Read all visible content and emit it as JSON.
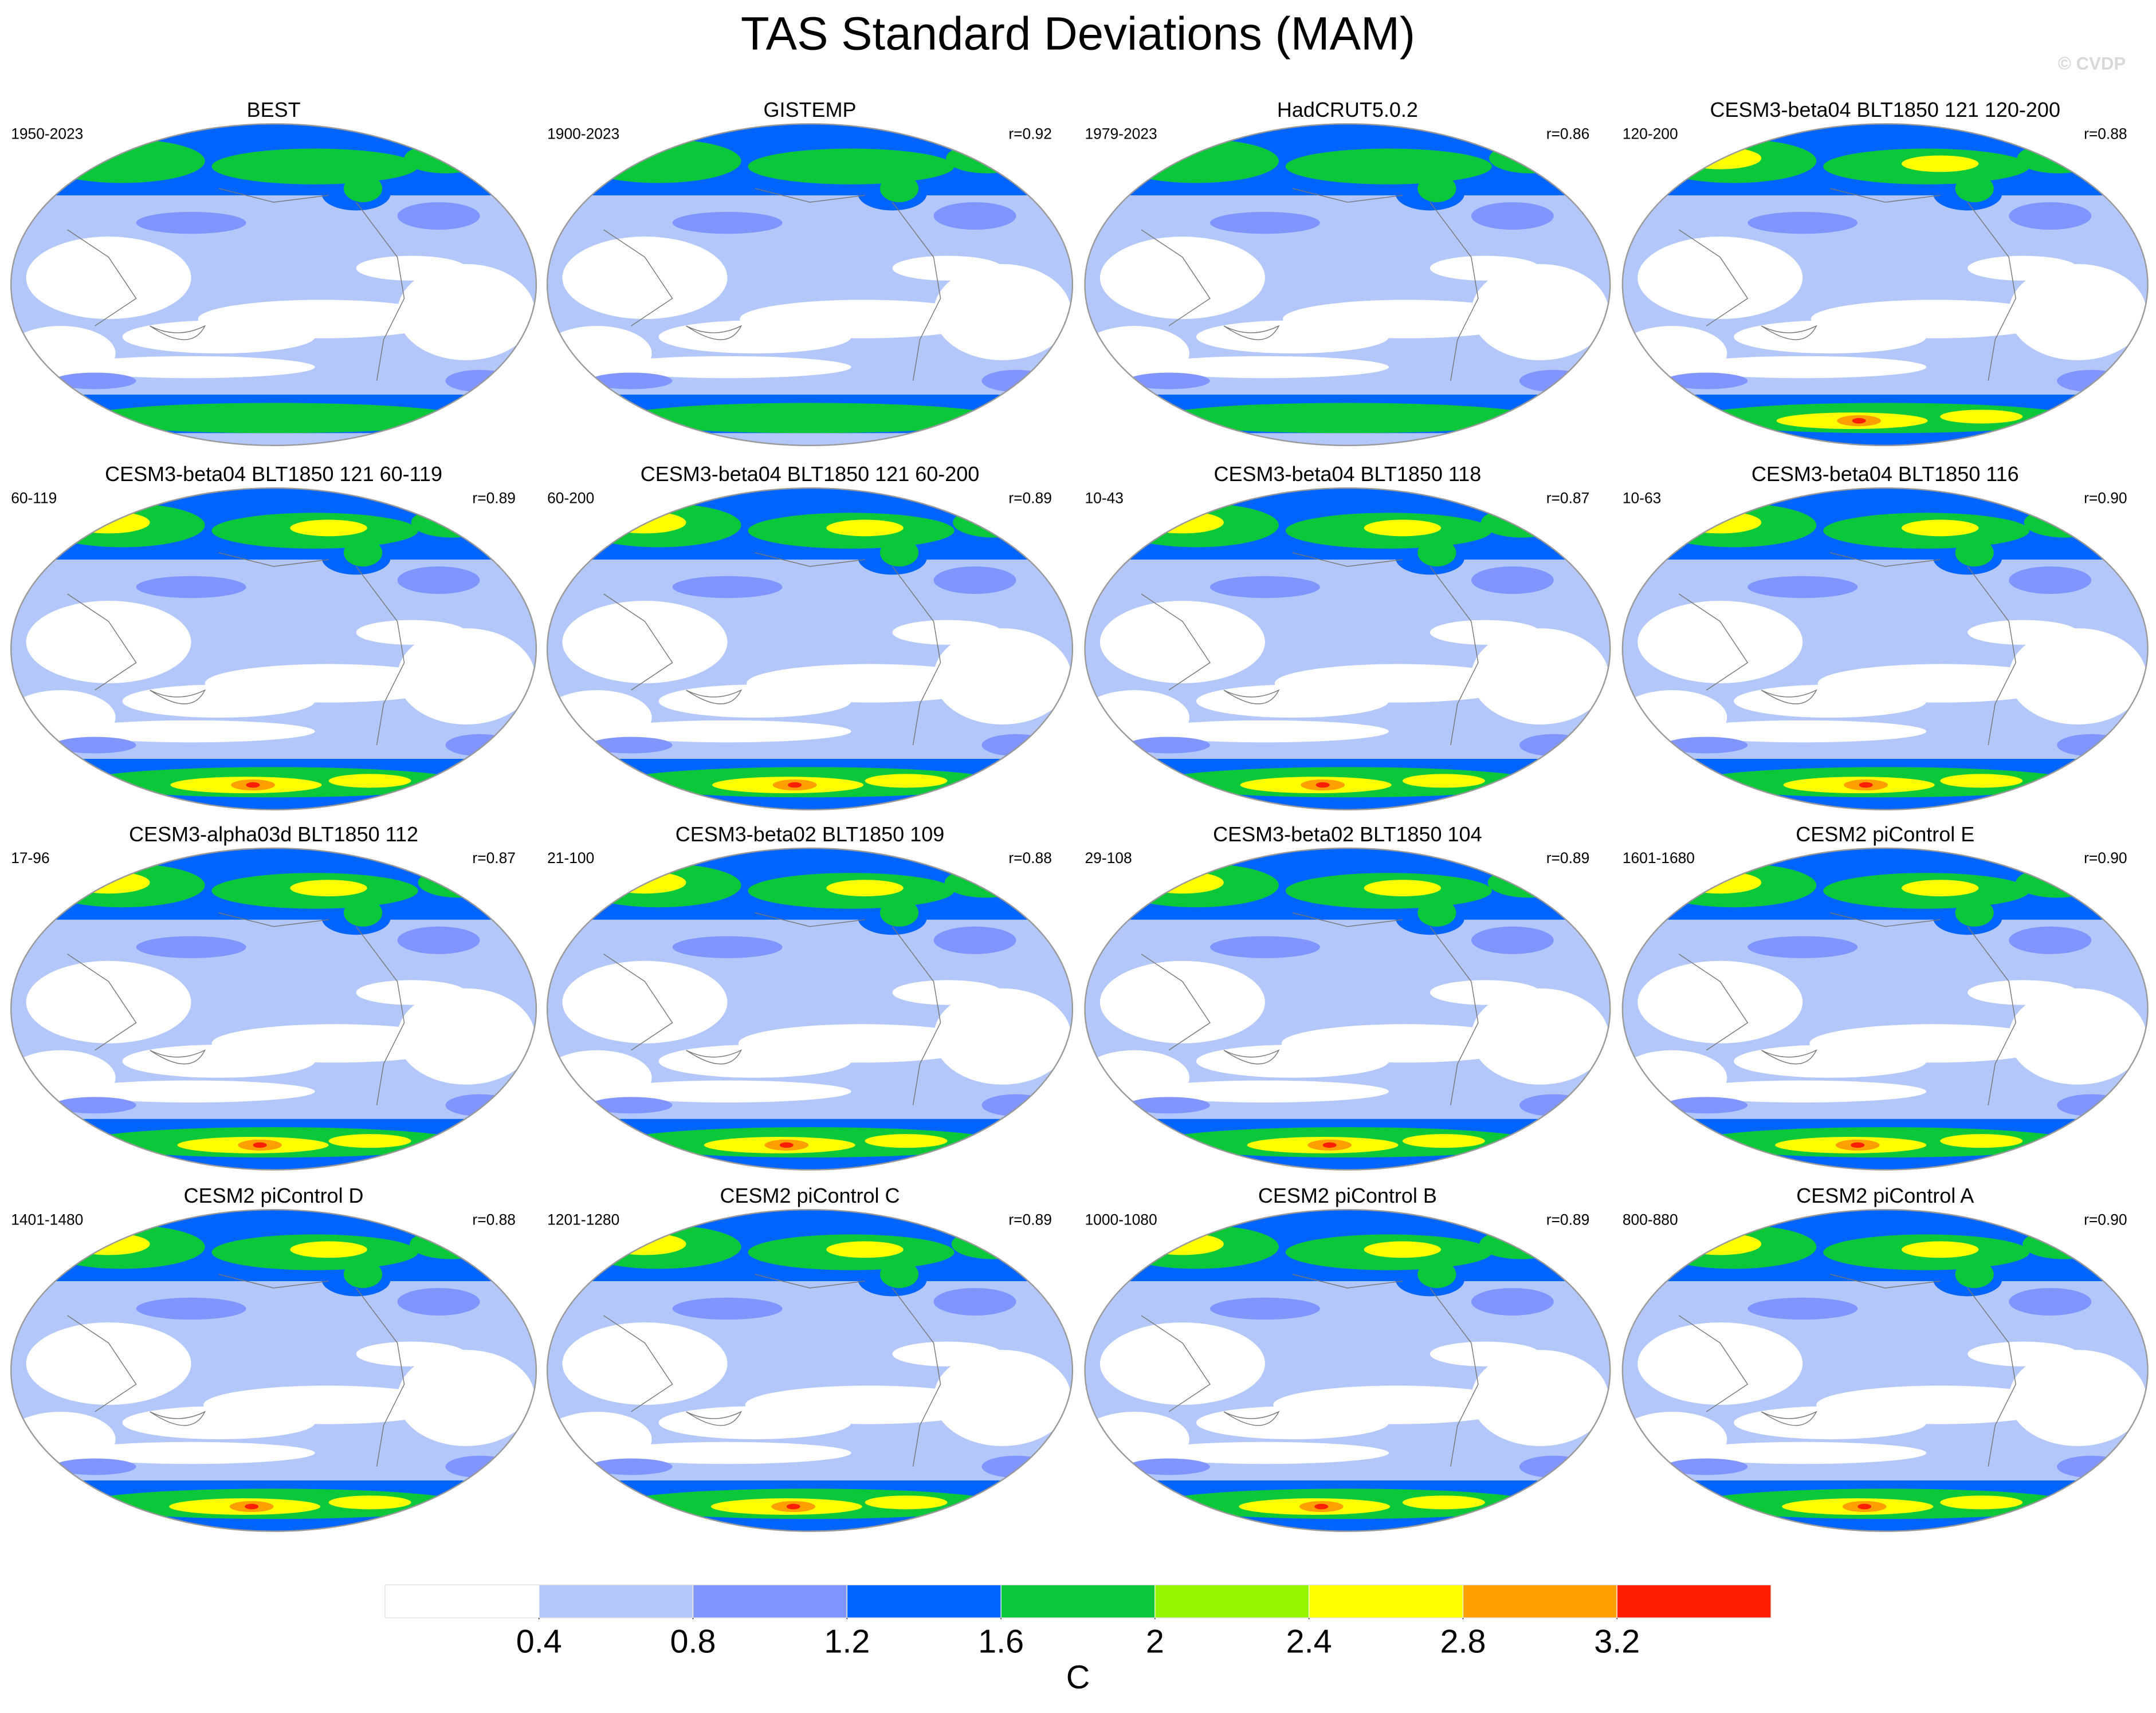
{
  "title": "TAS Standard Deviations (MAM)",
  "watermark": "© CVDP",
  "panels": [
    {
      "title": "BEST",
      "left": "1950-2023"
    },
    {
      "title": "GISTEMP",
      "left": "1900-2023",
      "right": "r=0.92"
    },
    {
      "title": "HadCRUT5.0.2",
      "left": "1979-2023",
      "right": "r=0.86"
    },
    {
      "title": "CESM3-beta04 BLT1850 121 120-200",
      "left": "120-200",
      "right": "r=0.88"
    },
    {
      "title": "CESM3-beta04 BLT1850 121 60-119",
      "left": "60-119",
      "right": "r=0.89"
    },
    {
      "title": "CESM3-beta04 BLT1850 121 60-200",
      "left": "60-200",
      "right": "r=0.89"
    },
    {
      "title": "CESM3-beta04 BLT1850 118",
      "left": "10-43",
      "right": "r=0.87"
    },
    {
      "title": "CESM3-beta04 BLT1850 116",
      "left": "10-63",
      "right": "r=0.90"
    },
    {
      "title": "CESM3-alpha03d BLT1850 112",
      "left": "17-96",
      "right": "r=0.87"
    },
    {
      "title": "CESM3-beta02 BLT1850 109",
      "left": "21-100",
      "right": "r=0.88"
    },
    {
      "title": "CESM3-beta02 BLT1850 104",
      "left": "29-108",
      "right": "r=0.89"
    },
    {
      "title": "CESM2 piControl E",
      "left": "1601-1680",
      "right": "r=0.90"
    },
    {
      "title": "CESM2 piControl D",
      "left": "1401-1480",
      "right": "r=0.88"
    },
    {
      "title": "CESM2 piControl C",
      "left": "1201-1280",
      "right": "r=0.89"
    },
    {
      "title": "CESM2 piControl B",
      "left": "1000-1080",
      "right": "r=0.89"
    },
    {
      "title": "CESM2 piControl A",
      "left": "800-880",
      "right": "r=0.90"
    }
  ],
  "colorbar": {
    "colors": [
      "#ffffff",
      "#b4c7fa",
      "#8095ff",
      "#0064ff",
      "#0bc83a",
      "#96f500",
      "#ffff00",
      "#ffa000",
      "#ff1e00"
    ],
    "ticks": [
      0.4,
      0.8,
      1.2,
      1.6,
      2,
      2.4,
      2.8,
      3.2
    ],
    "label": "C"
  }
}
